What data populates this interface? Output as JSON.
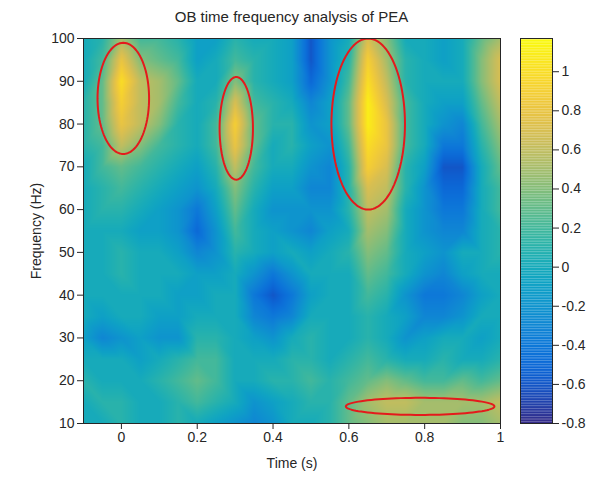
{
  "chart_data": {
    "type": "heatmap",
    "title": "OB time frequency analysis of PEA",
    "x_label": "Time (s)",
    "y_label": "Frequency (Hz)",
    "xlim": [
      -0.1,
      1
    ],
    "ylim": [
      10,
      100
    ],
    "xticks": [
      0,
      0.2,
      0.4,
      0.6,
      0.8,
      1
    ],
    "yticks": [
      10,
      20,
      30,
      40,
      50,
      60,
      70,
      80,
      90,
      100
    ],
    "x": [
      -0.1,
      -0.05,
      0,
      0.05,
      0.1,
      0.15,
      0.2,
      0.25,
      0.3,
      0.35,
      0.4,
      0.45,
      0.5,
      0.55,
      0.6,
      0.65,
      0.7,
      0.75,
      0.8,
      0.85,
      0.9,
      0.95,
      1
    ],
    "y": [
      10,
      15,
      20,
      25,
      30,
      35,
      40,
      45,
      50,
      55,
      60,
      65,
      70,
      75,
      80,
      85,
      90,
      95,
      100
    ],
    "z": [
      [
        0,
        0,
        0.1,
        0,
        0,
        0.1,
        0,
        -0.1,
        -0.2,
        -0.3,
        -0.2,
        0,
        0,
        0.1,
        0.3,
        0.4,
        0.5,
        0.5,
        0.5,
        0.5,
        0.4,
        0.4,
        0.5
      ],
      [
        0,
        0.1,
        0.1,
        0,
        0,
        0.1,
        0.2,
        0.1,
        0,
        -0.2,
        -0.1,
        0,
        0.1,
        0.1,
        0.3,
        0.5,
        0.6,
        0.6,
        0.5,
        0.5,
        0.5,
        0.5,
        0.6
      ],
      [
        0.1,
        0,
        0,
        0,
        0.1,
        0.2,
        0.3,
        0.2,
        0,
        0,
        0.1,
        0.1,
        0.2,
        0.1,
        0.2,
        0.3,
        0.4,
        0.3,
        0.2,
        0.2,
        0.3,
        0.2,
        0.3
      ],
      [
        0,
        0,
        0,
        -0.1,
        0,
        0.1,
        0.2,
        0.2,
        0,
        0,
        0,
        0.1,
        0.1,
        0,
        0.1,
        0.2,
        0.1,
        0,
        0,
        0.1,
        0,
        0,
        0.1
      ],
      [
        -0.1,
        -0.3,
        -0.2,
        -0.1,
        -0.2,
        -0.2,
        0.1,
        0.1,
        0,
        -0.1,
        -0.2,
        0,
        0.1,
        0,
        0,
        0.1,
        0,
        -0.2,
        -0.1,
        0,
        0,
        -0.1,
        0
      ],
      [
        0,
        -0.1,
        0,
        0,
        -0.1,
        -0.1,
        0,
        0,
        0,
        -0.3,
        -0.4,
        -0.3,
        0,
        0,
        0,
        0.1,
        0,
        -0.1,
        -0.3,
        -0.3,
        -0.2,
        0,
        0
      ],
      [
        0,
        0,
        0,
        0,
        0,
        -0.1,
        -0.1,
        0,
        0,
        -0.4,
        -0.6,
        -0.4,
        -0.1,
        0,
        0,
        0.2,
        0.1,
        -0.2,
        -0.4,
        -0.4,
        -0.3,
        -0.1,
        0
      ],
      [
        0,
        0,
        0.1,
        0,
        0,
        0,
        -0.1,
        -0.1,
        0,
        -0.2,
        -0.4,
        -0.2,
        0,
        0,
        0,
        0.3,
        0.2,
        0,
        -0.2,
        -0.3,
        -0.1,
        0,
        0
      ],
      [
        0,
        0,
        0.1,
        0,
        0,
        -0.1,
        -0.3,
        -0.2,
        0.1,
        0,
        -0.1,
        0,
        -0.1,
        0,
        0.1,
        0.4,
        0.3,
        0,
        -0.1,
        -0.2,
        0,
        0,
        0.1
      ],
      [
        0,
        0,
        0,
        -0.1,
        -0.1,
        -0.2,
        -0.5,
        -0.2,
        0.2,
        0,
        -0.1,
        -0.2,
        -0.3,
        -0.1,
        0,
        0.5,
        0.4,
        0,
        -0.2,
        -0.3,
        -0.3,
        0,
        0.1
      ],
      [
        0,
        0.1,
        0.1,
        0,
        -0.1,
        -0.2,
        -0.4,
        -0.1,
        0.3,
        0,
        -0.2,
        -0.2,
        -0.2,
        -0.2,
        0.1,
        0.6,
        0.5,
        0,
        -0.2,
        -0.4,
        -0.4,
        0,
        0.2
      ],
      [
        0,
        0.1,
        0.2,
        0.1,
        0,
        -0.1,
        -0.2,
        0,
        0.4,
        0.1,
        -0.1,
        -0.1,
        -0.3,
        -0.3,
        0.1,
        0.7,
        0.6,
        0.1,
        -0.2,
        -0.5,
        -0.5,
        0,
        0.2
      ],
      [
        0,
        0.2,
        0.3,
        0.2,
        0.1,
        0,
        -0.1,
        0.1,
        0.6,
        0.2,
        0,
        0,
        -0.2,
        -0.3,
        0.1,
        0.9,
        0.7,
        0.1,
        -0.1,
        -0.6,
        -0.6,
        0,
        0.3
      ],
      [
        0.1,
        0.2,
        0.6,
        0.4,
        0.2,
        0.1,
        0,
        0.2,
        0.8,
        0.3,
        0,
        0.1,
        -0.1,
        -0.2,
        0.2,
        1.0,
        0.8,
        0.2,
        0,
        -0.4,
        -0.4,
        0.1,
        0.4
      ],
      [
        0.1,
        0.3,
        0.8,
        0.6,
        0.4,
        0.1,
        0,
        0.2,
        0.9,
        0.3,
        0.1,
        0.1,
        -0.2,
        -0.1,
        0.3,
        1.1,
        0.8,
        0.2,
        0,
        -0.2,
        -0.3,
        0.2,
        0.5
      ],
      [
        0.1,
        0.3,
        0.9,
        0.6,
        0.5,
        0.2,
        0,
        0.1,
        0.7,
        0.2,
        0.1,
        0,
        -0.3,
        -0.1,
        0.3,
        1.1,
        0.7,
        0.2,
        0,
        -0.1,
        -0.1,
        0.3,
        0.6
      ],
      [
        0,
        0.3,
        1.0,
        0.6,
        0.5,
        0.3,
        0,
        0,
        0.4,
        0.1,
        0,
        -0.1,
        -0.5,
        -0.2,
        0.2,
        1.0,
        0.6,
        0.1,
        0,
        0,
        0,
        0.4,
        0.7
      ],
      [
        0,
        0.2,
        0.8,
        0.4,
        0.3,
        0.2,
        -0.1,
        0,
        0.2,
        0.1,
        0,
        -0.1,
        -0.6,
        -0.2,
        0.1,
        0.9,
        0.5,
        0.1,
        0,
        -0.1,
        0,
        0.4,
        0.7
      ],
      [
        0,
        0.1,
        0.5,
        0.2,
        0.2,
        0.1,
        -0.1,
        -0.1,
        0.1,
        0,
        0,
        -0.1,
        -0.6,
        -0.2,
        0,
        0.7,
        0.4,
        0,
        0,
        -0.1,
        0,
        0.3,
        0.5
      ]
    ],
    "colorbar": {
      "range": [
        -0.8,
        1.17
      ],
      "ticks": [
        -0.8,
        -0.6,
        -0.4,
        -0.2,
        0,
        0.2,
        0.4,
        0.6,
        0.8,
        1
      ]
    },
    "annotations": [
      {
        "type": "ellipse",
        "x": 0.005,
        "y": 86,
        "rx": 0.068,
        "ry": 13,
        "color": "#e41a1c"
      },
      {
        "type": "ellipse",
        "x": 0.303,
        "y": 79,
        "rx": 0.044,
        "ry": 12,
        "color": "#e41a1c"
      },
      {
        "type": "ellipse",
        "x": 0.651,
        "y": 80,
        "rx": 0.097,
        "ry": 20,
        "color": "#e41a1c"
      },
      {
        "type": "ellipse",
        "x": 0.788,
        "y": 14,
        "rx": 0.196,
        "ry": 2,
        "color": "#e41a1c"
      }
    ]
  }
}
